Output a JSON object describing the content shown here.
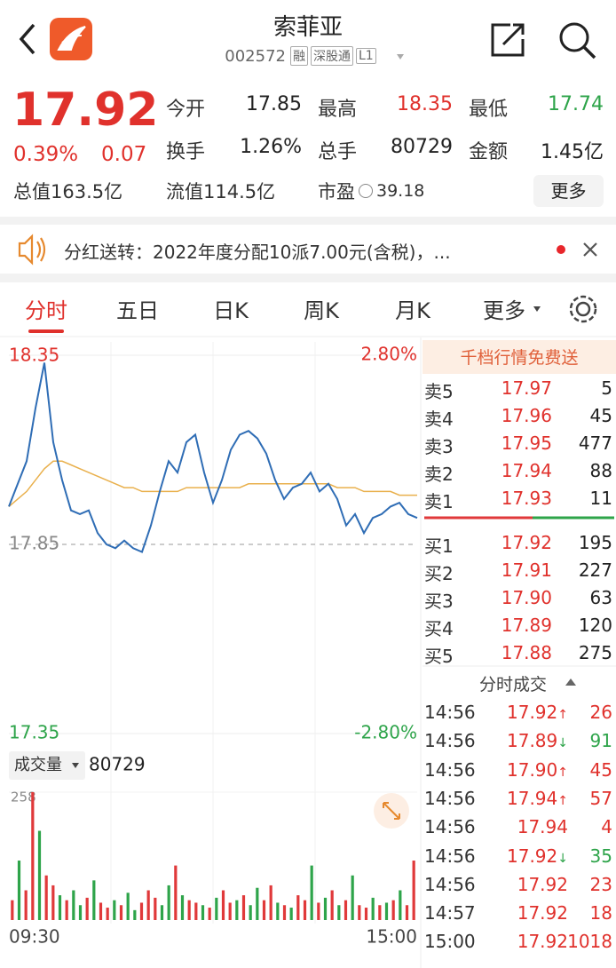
{
  "header": {
    "title": "索菲亚",
    "code": "002572",
    "tags": [
      "融",
      "深股通",
      "L1"
    ]
  },
  "quote": {
    "price": "17.92",
    "change_pct": "0.39%",
    "change": "0.07",
    "fields": [
      [
        "今开",
        "17.85"
      ],
      [
        "最高",
        "18.35"
      ],
      [
        "最低",
        "17.74"
      ],
      [
        "换手",
        "1.26%"
      ],
      [
        "总手",
        "80729"
      ],
      [
        "金额",
        "1.45亿"
      ]
    ],
    "stats": [
      [
        "总值",
        "163.5亿"
      ],
      [
        "流值",
        "114.5亿"
      ],
      [
        "市盈",
        "39.18"
      ]
    ],
    "more": "更多"
  },
  "notice": "分红送转：2022年度分配10派7.00元(含税)，...",
  "tabs": [
    "分时",
    "五日",
    "日K",
    "周K",
    "月K",
    "更多"
  ],
  "order_book": {
    "banner": "千档行情免费送",
    "asks": [
      [
        "卖5",
        "17.97",
        "5"
      ],
      [
        "卖4",
        "17.96",
        "45"
      ],
      [
        "卖3",
        "17.95",
        "477"
      ],
      [
        "卖2",
        "17.94",
        "88"
      ],
      [
        "卖1",
        "17.93",
        "11"
      ]
    ],
    "bids": [
      [
        "买1",
        "17.92",
        "195"
      ],
      [
        "买2",
        "17.91",
        "227"
      ],
      [
        "买3",
        "17.90",
        "63"
      ],
      [
        "买4",
        "17.89",
        "120"
      ],
      [
        "买5",
        "17.88",
        "275"
      ]
    ]
  },
  "trades": {
    "title": "分时成交",
    "rows": [
      [
        "14:56",
        "17.92",
        "↑",
        "26"
      ],
      [
        "14:56",
        "17.89",
        "↓",
        "91"
      ],
      [
        "14:56",
        "17.90",
        "↑",
        "45"
      ],
      [
        "14:56",
        "17.94",
        "↑",
        "57"
      ],
      [
        "14:56",
        "17.94",
        "",
        "4"
      ],
      [
        "14:56",
        "17.92",
        "↓",
        "35"
      ],
      [
        "14:56",
        "17.92",
        "",
        "23"
      ],
      [
        "14:57",
        "17.92",
        "",
        "18"
      ],
      [
        "15:00",
        "17.92",
        "",
        "1018"
      ]
    ]
  },
  "chart_data": [
    {
      "type": "line",
      "ylim": [
        17.35,
        18.35
      ],
      "yticks": [
        18.35,
        17.85,
        17.35
      ],
      "y2lim": [
        -2.8,
        2.8
      ],
      "y2ticks": [
        {
          "value": 2.8,
          "label": "2.80%"
        },
        {
          "value": -2.8,
          "label": "-2.80%"
        }
      ],
      "series": [
        {
          "color": "#2f6db5",
          "values": [
            17.95,
            18.01,
            18.07,
            18.21,
            18.33,
            18.12,
            18.02,
            17.94,
            17.93,
            17.94,
            17.88,
            17.85,
            17.84,
            17.86,
            17.84,
            17.83,
            17.9,
            17.99,
            18.07,
            18.04,
            18.12,
            18.14,
            18.04,
            17.96,
            18.02,
            18.1,
            18.14,
            18.15,
            18.13,
            18.09,
            18.02,
            17.97,
            18.0,
            18.01,
            18.04,
            17.99,
            18.01,
            17.97,
            17.9,
            17.93,
            17.88,
            17.92,
            17.93,
            17.95,
            17.96,
            17.93,
            17.92
          ]
        },
        {
          "color": "#e9b04c",
          "values": [
            17.95,
            17.97,
            17.99,
            18.02,
            18.05,
            18.07,
            18.07,
            18.06,
            18.05,
            18.04,
            18.03,
            18.02,
            18.01,
            18.0,
            18.0,
            17.99,
            17.99,
            17.99,
            17.99,
            17.99,
            18.0,
            18.0,
            18.0,
            18.0,
            18.0,
            18.0,
            18.0,
            18.01,
            18.01,
            18.01,
            18.01,
            18.01,
            18.01,
            18.01,
            18.01,
            18.01,
            18.01,
            18.0,
            18.0,
            18.0,
            17.99,
            17.99,
            17.99,
            17.99,
            17.98,
            17.98,
            17.98
          ]
        }
      ]
    },
    {
      "type": "bar",
      "title": "成交量",
      "total": 80729,
      "ylim": [
        0,
        258
      ],
      "yticks": [
        258
      ],
      "categories": [
        "09:30",
        null,
        null,
        null,
        null,
        null,
        null,
        null,
        null,
        null,
        null,
        null,
        null,
        null,
        null,
        null,
        null,
        null,
        null,
        null,
        null,
        null,
        null,
        null,
        null,
        null,
        null,
        null,
        null,
        null,
        null,
        null,
        null,
        null,
        null,
        null,
        null,
        null,
        null,
        null,
        null,
        null,
        null,
        null,
        null,
        null,
        null,
        null,
        null,
        null,
        null,
        null,
        null,
        null,
        null,
        null,
        null,
        null,
        null,
        "15:00"
      ],
      "series": [
        {
          "color": "#e0393a",
          "values": [
            40,
            null,
            60,
            258,
            null,
            90,
            70,
            null,
            40,
            null,
            null,
            45,
            null,
            35,
            25,
            null,
            30,
            null,
            null,
            35,
            60,
            45,
            null,
            null,
            110,
            null,
            40,
            35,
            null,
            25,
            null,
            60,
            35,
            null,
            50,
            null,
            null,
            40,
            70,
            null,
            30,
            null,
            50,
            40,
            null,
            35,
            null,
            60,
            null,
            40,
            null,
            30,
            25,
            null,
            30,
            null,
            40,
            null,
            30,
            120
          ]
        },
        {
          "color": "#2ea44a",
          "values": [
            null,
            120,
            null,
            null,
            180,
            null,
            null,
            50,
            null,
            60,
            30,
            null,
            80,
            null,
            null,
            40,
            null,
            55,
            20,
            null,
            null,
            null,
            30,
            70,
            null,
            50,
            null,
            null,
            30,
            null,
            45,
            null,
            null,
            40,
            null,
            30,
            65,
            null,
            null,
            35,
            null,
            25,
            null,
            null,
            110,
            null,
            45,
            null,
            30,
            null,
            90,
            null,
            null,
            45,
            null,
            35,
            null,
            60,
            null,
            null
          ]
        }
      ]
    }
  ]
}
